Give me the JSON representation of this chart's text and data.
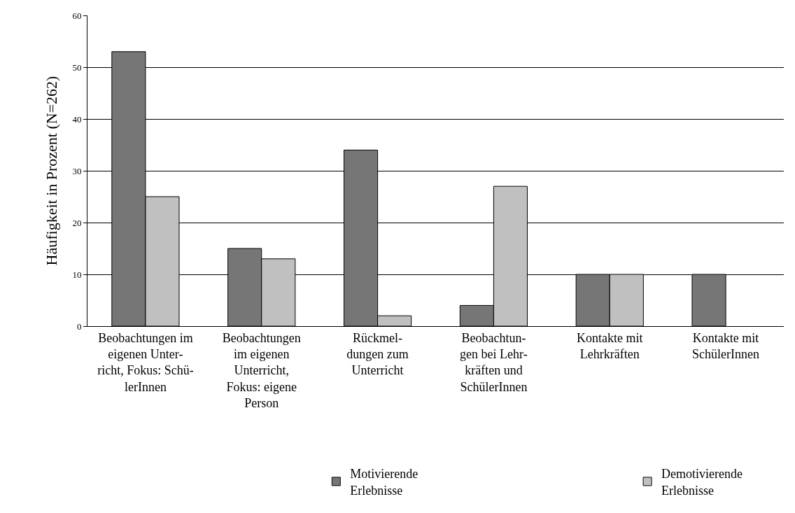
{
  "chart_data": {
    "type": "bar",
    "ylabel": "Häufigkeit in Prozent (N=262)",
    "categories": [
      "Beobachtungen im\neigenen Unter-\nricht, Fokus: Schü-\nlerInnen",
      "Beobachtungen\nim eigenen\nUnterricht,\nFokus: eigene\nPerson",
      "Rückmel-\ndungen zum\nUnterricht",
      "Beobachtun-\ngen bei Lehr-\nkräften und\nSchülerInnen",
      "Kontakte mit\nLehrkräften",
      "Kontakte mit\nSchülerInnen"
    ],
    "series": [
      {
        "name": "Motivierende\nErlebnisse",
        "color": "#767676",
        "values": [
          53,
          15,
          34,
          4,
          10,
          10
        ]
      },
      {
        "name": "Demotivierende\nErlebnisse",
        "color": "#c0c0c0",
        "values": [
          25,
          13,
          2,
          27,
          10,
          null
        ]
      }
    ],
    "ylim": [
      0,
      60
    ],
    "yticks": [
      0,
      10,
      20,
      30,
      40,
      50,
      60
    ],
    "grid": "y",
    "legend": "bottom"
  }
}
